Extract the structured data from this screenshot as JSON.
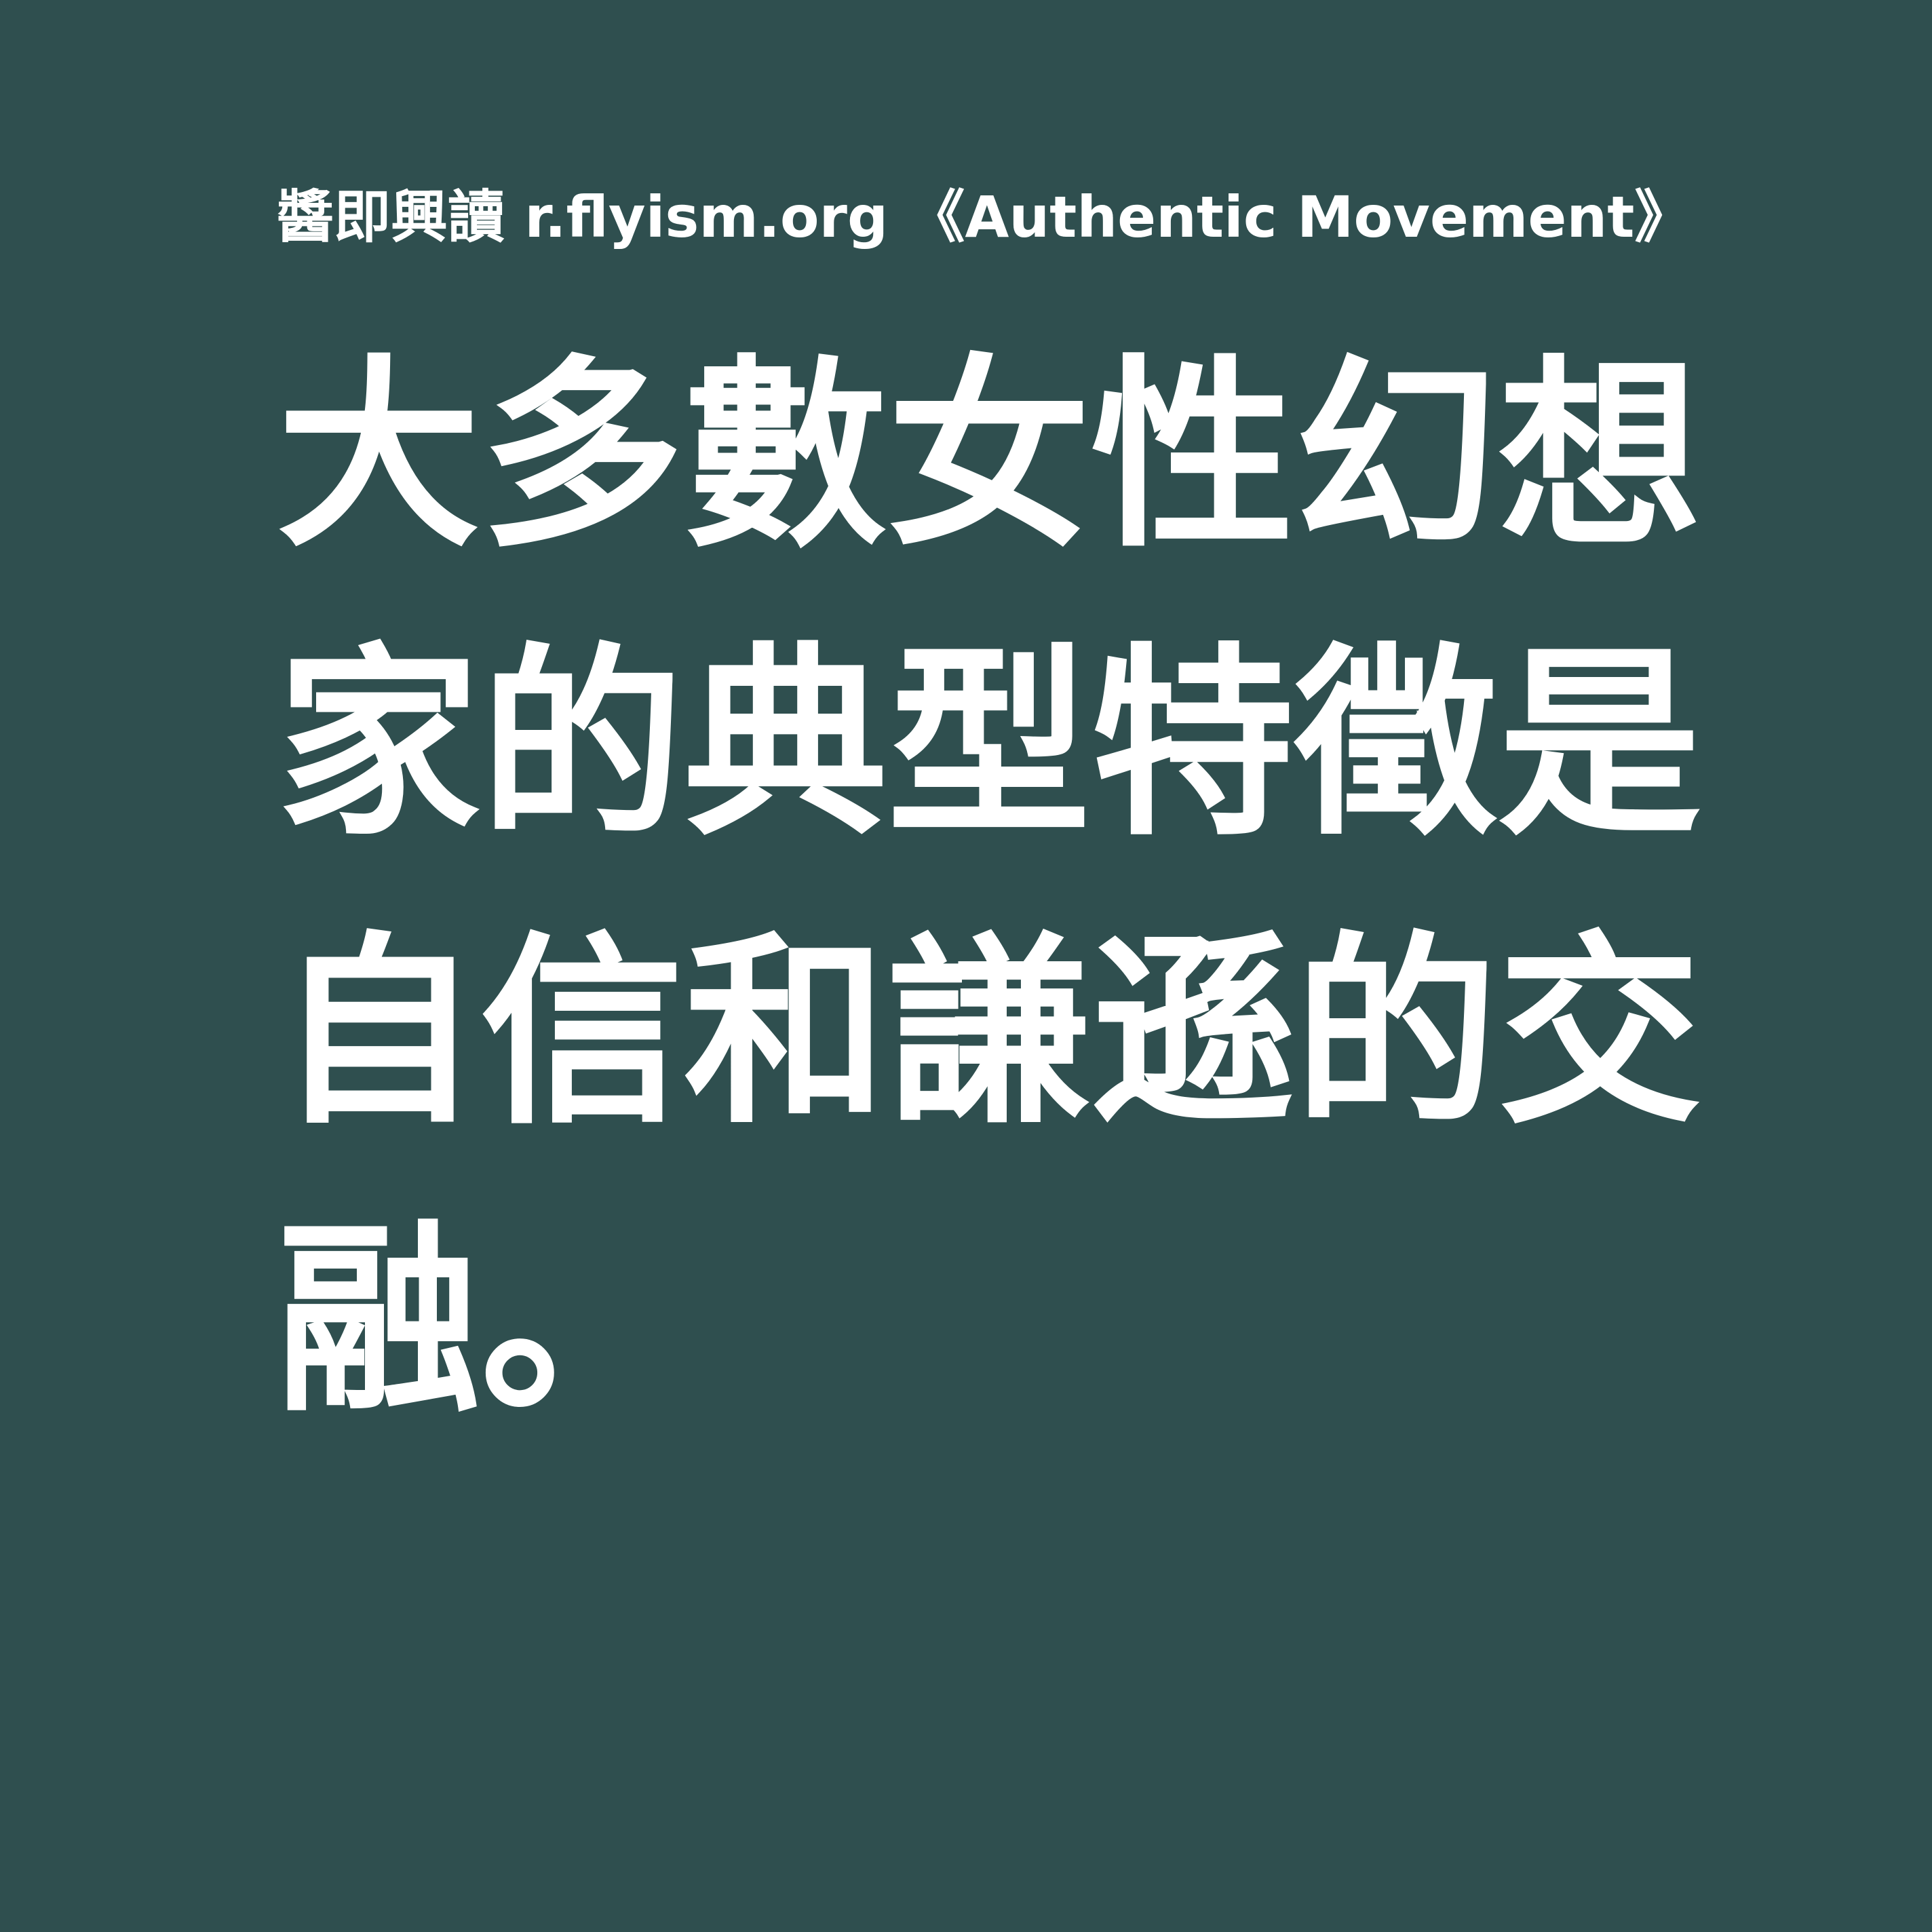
{
  "background_color": "#2f4f4f",
  "text_color": "#ffffff",
  "header": {
    "text": "醬即興讀 r.flyism.org 《Authentic Movement》"
  },
  "quote": {
    "lines": [
      "大多數女性幻想",
      "家的典型特徵是",
      "自信和謙遜的交",
      "融。"
    ]
  }
}
